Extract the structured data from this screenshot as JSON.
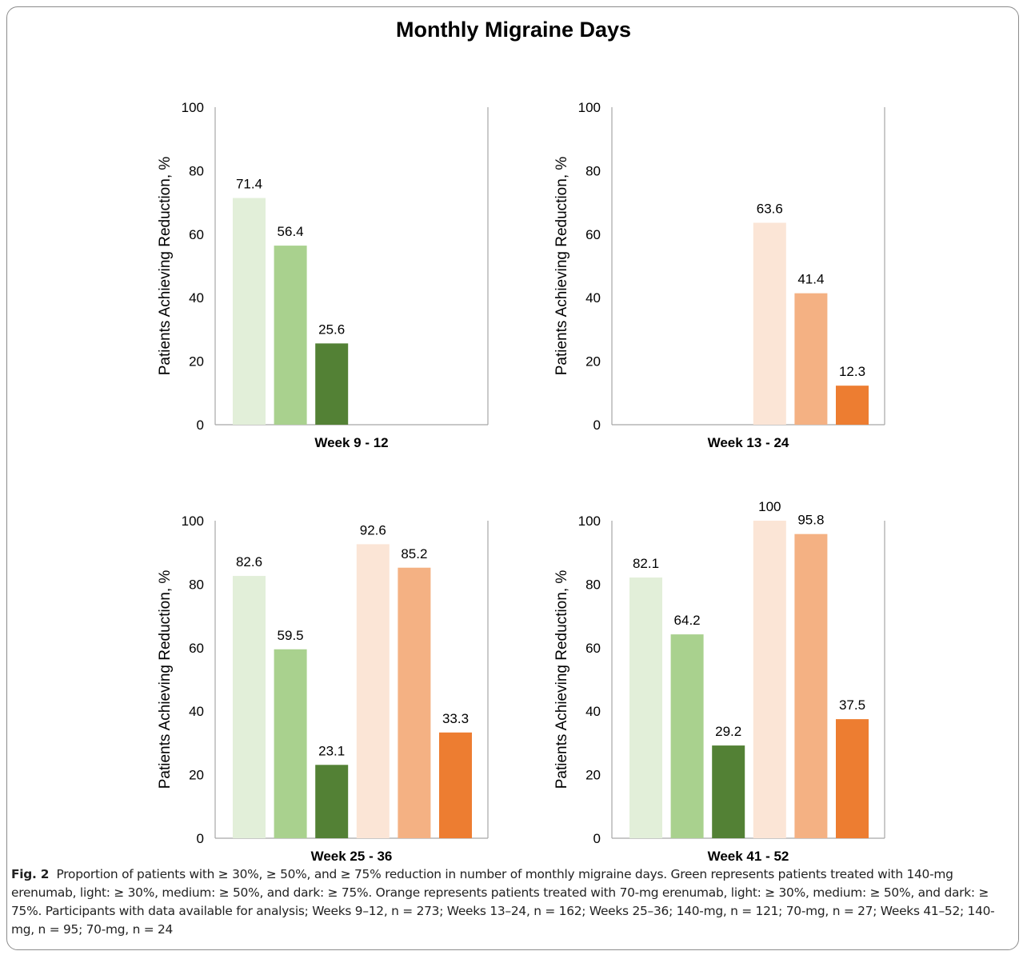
{
  "title": "Monthly Migraine Days",
  "colors": {
    "green_light": "#e2efd9",
    "green_medium": "#a9d18e",
    "green_dark": "#538135",
    "orange_light": "#fbe5d6",
    "orange_medium": "#f4b183",
    "orange_dark": "#ed7d31",
    "axis": "#a6a6a6"
  },
  "chart_data": [
    {
      "type": "bar",
      "xlabel": "Week 9 - 12",
      "ylabel": "Patients Achieving Reduction, %",
      "ylim": [
        0,
        100
      ],
      "yticks": [
        0,
        20,
        40,
        60,
        80,
        100
      ],
      "series": [
        {
          "values": [
            71.4,
            56.4,
            25.6,
            null,
            null,
            null
          ],
          "labels": [
            "71.4",
            "56.4",
            "25.6",
            "",
            "",
            ""
          ]
        }
      ]
    },
    {
      "type": "bar",
      "xlabel": "Week 13 - 24",
      "ylabel": "Patients Achieving Reduction, %",
      "ylim": [
        0,
        100
      ],
      "yticks": [
        0,
        20,
        40,
        60,
        80,
        100
      ],
      "series": [
        {
          "values": [
            null,
            null,
            null,
            63.6,
            41.4,
            12.3
          ],
          "labels": [
            "",
            "",
            "",
            "63.6",
            "41.4",
            "12.3"
          ]
        }
      ]
    },
    {
      "type": "bar",
      "xlabel": "Week 25 - 36",
      "ylabel": "Patients Achieving Reduction, %",
      "ylim": [
        0,
        100
      ],
      "yticks": [
        0,
        20,
        40,
        60,
        80,
        100
      ],
      "series": [
        {
          "values": [
            82.6,
            59.5,
            23.1,
            92.6,
            85.2,
            33.3
          ],
          "labels": [
            "82.6",
            "59.5",
            "23.1",
            "92.6",
            "85.2",
            "33.3"
          ]
        }
      ]
    },
    {
      "type": "bar",
      "xlabel": "Week 41 - 52",
      "ylabel": "Patients Achieving Reduction, %",
      "ylim": [
        0,
        100
      ],
      "yticks": [
        0,
        20,
        40,
        60,
        80,
        100
      ],
      "series": [
        {
          "values": [
            82.1,
            64.2,
            29.2,
            100,
            95.8,
            37.5
          ],
          "labels": [
            "82.1",
            "64.2",
            "29.2",
            "100",
            "95.8",
            "37.5"
          ]
        }
      ]
    }
  ],
  "caption": {
    "label": "Fig. 2",
    "text": "Proportion of patients with ≥ 30%, ≥ 50%, and ≥ 75% reduction in number of monthly migraine days. Green represents patients treated with 140-mg erenumab, light: ≥ 30%, medium: ≥ 50%, and dark: ≥ 75%. Orange represents patients treated with 70-mg erenumab, light: ≥ 30%, medium: ≥ 50%, and dark: ≥ 75%. Participants with data available for analysis; Weeks 9–12, n = 273; Weeks 13–24, n = 162; Weeks 25–36; 140-mg, n = 121; 70-mg, n = 27; Weeks 41–52; 140-mg, n = 95; 70-mg, n = 24"
  }
}
